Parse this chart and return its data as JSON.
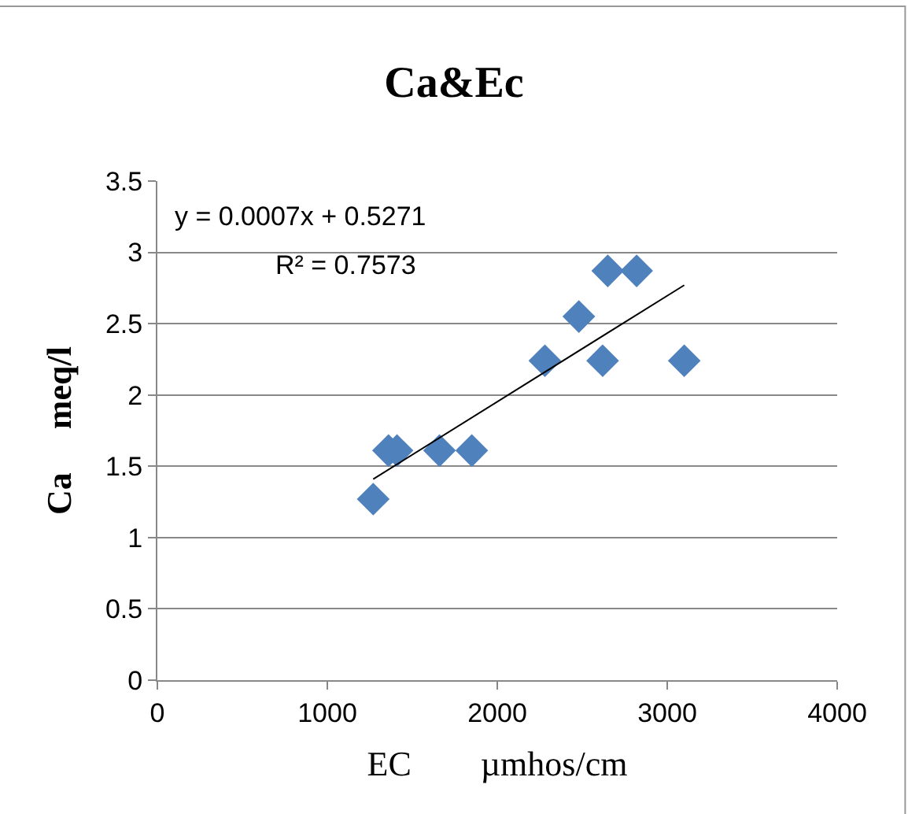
{
  "chart_data": {
    "type": "scatter",
    "title": "Ca&Ec",
    "xlabel": "EC        µmhos/cm",
    "ylabel": "Ca     meq/l",
    "series": [
      {
        "color": "#4f81bd",
        "marker": "diamond",
        "x": [
          1270,
          1360,
          1410,
          1660,
          1850,
          2280,
          2480,
          2620,
          2650,
          2820,
          3100
        ],
        "values": [
          1.27,
          1.61,
          1.61,
          1.61,
          1.61,
          2.24,
          2.55,
          2.24,
          2.87,
          2.87,
          2.24
        ]
      },
      {
        "type": "line",
        "color": "#000000",
        "marker": "none",
        "x": [
          1270,
          3100
        ],
        "values": [
          1.41,
          2.77
        ]
      }
    ],
    "annotations": [
      "y = 0.0007x + 0.5271",
      "R² = 0.7573"
    ],
    "xlim": [
      0,
      4000
    ],
    "xticks": [
      0,
      1000,
      2000,
      3000,
      4000
    ],
    "ylim": [
      0,
      3.5
    ],
    "yticks": [
      0,
      0.5,
      1,
      1.5,
      2,
      2.5,
      3,
      3.5
    ],
    "grid": "y",
    "legend": false
  }
}
